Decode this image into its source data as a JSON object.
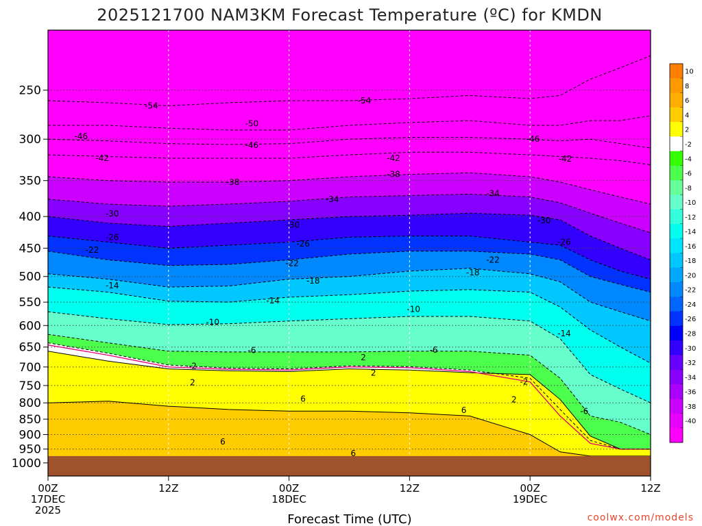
{
  "chart_data": {
    "type": "heatmap",
    "title": "2025121700 NAM3KM Forecast Temperature (ºC) for KMDN",
    "xlabel": "Forecast Time (UTC)",
    "ylabel": "",
    "x_unit": "hours from 2025-12-17 00Z",
    "xlim": [
      0,
      60
    ],
    "ylim_hpa": [
      1050,
      200
    ],
    "y_scale": "log-pressure",
    "x_ticks": [
      {
        "hour": 0,
        "lines": [
          "00Z",
          "17DEC",
          "2025"
        ]
      },
      {
        "hour": 12,
        "lines": [
          "12Z"
        ]
      },
      {
        "hour": 24,
        "lines": [
          "00Z",
          "18DEC"
        ]
      },
      {
        "hour": 36,
        "lines": [
          "12Z"
        ]
      },
      {
        "hour": 48,
        "lines": [
          "00Z",
          "19DEC"
        ]
      },
      {
        "hour": 60,
        "lines": [
          "12Z"
        ]
      }
    ],
    "y_ticks": [
      250,
      300,
      350,
      400,
      450,
      500,
      550,
      600,
      650,
      700,
      750,
      800,
      850,
      900,
      950,
      1000
    ],
    "grid": true,
    "ground_color": "#a0522d",
    "ground_top_hpa": 975,
    "colorbar": {
      "position": "right",
      "levels": [
        {
          "lo": 10,
          "hi": 12,
          "color": "#ff7f00",
          "label": "10"
        },
        {
          "lo": 8,
          "hi": 10,
          "color": "#ff9900",
          "label": "8"
        },
        {
          "lo": 6,
          "hi": 8,
          "color": "#ffae00",
          "label": "6"
        },
        {
          "lo": 4,
          "hi": 6,
          "color": "#ffcc00",
          "label": "4"
        },
        {
          "lo": 2,
          "hi": 4,
          "color": "#ffff00",
          "label": "2"
        },
        {
          "lo": -2,
          "hi": 2,
          "color": "#ffffff",
          "label": "-2"
        },
        {
          "lo": -4,
          "hi": -2,
          "color": "#33ff00",
          "label": "-4"
        },
        {
          "lo": -6,
          "hi": -4,
          "color": "#4cff4c",
          "label": "-6"
        },
        {
          "lo": -8,
          "hi": -6,
          "color": "#66ff99",
          "label": "-8"
        },
        {
          "lo": -10,
          "hi": -8,
          "color": "#66ffcc",
          "label": "-10"
        },
        {
          "lo": -12,
          "hi": -10,
          "color": "#33ffdd",
          "label": "-12"
        },
        {
          "lo": -14,
          "hi": -12,
          "color": "#00ffee",
          "label": "-14"
        },
        {
          "lo": -16,
          "hi": -14,
          "color": "#00e5ff",
          "label": "-16"
        },
        {
          "lo": -18,
          "hi": -16,
          "color": "#00c8ff",
          "label": "-18"
        },
        {
          "lo": -20,
          "hi": -18,
          "color": "#00a8ff",
          "label": "-20"
        },
        {
          "lo": -22,
          "hi": -20,
          "color": "#0088ff",
          "label": "-22"
        },
        {
          "lo": -24,
          "hi": -22,
          "color": "#0066ff",
          "label": "-24"
        },
        {
          "lo": -26,
          "hi": -24,
          "color": "#0033ff",
          "label": "-26"
        },
        {
          "lo": -28,
          "hi": -26,
          "color": "#0000ff",
          "label": "-28"
        },
        {
          "lo": -30,
          "hi": -28,
          "color": "#3300ff",
          "label": "-30"
        },
        {
          "lo": -32,
          "hi": -30,
          "color": "#6600ff",
          "label": "-32"
        },
        {
          "lo": -34,
          "hi": -32,
          "color": "#8800ff",
          "label": "-34"
        },
        {
          "lo": -36,
          "hi": -34,
          "color": "#aa00ff",
          "label": "-36"
        },
        {
          "lo": -38,
          "hi": -36,
          "color": "#cc00ff",
          "label": "-38"
        },
        {
          "lo": -40,
          "hi": -38,
          "color": "#e600ff",
          "label": "-40"
        },
        {
          "lo": -60,
          "hi": -40,
          "color": "#ff00ff",
          "label": ""
        }
      ]
    },
    "profile_times_h": [
      0,
      6,
      12,
      18,
      24,
      30,
      36,
      42,
      48,
      51,
      54,
      57,
      60
    ],
    "isotherm_levels_hpa": [
      {
        "t": 2,
        "p": [
          660,
          685,
          705,
          710,
          712,
          705,
          708,
          715,
          720,
          790,
          905,
          950,
          950
        ]
      },
      {
        "t": 0,
        "p": [
          645,
          670,
          700,
          706,
          708,
          700,
          702,
          712,
          740,
          840,
          930,
          950,
          950
        ]
      },
      {
        "t": -2,
        "p": [
          640,
          665,
          695,
          703,
          705,
          697,
          699,
          708,
          730,
          820,
          920,
          950,
          950
        ]
      },
      {
        "t": -6,
        "p": [
          620,
          640,
          660,
          662,
          662,
          662,
          660,
          660,
          670,
          730,
          840,
          860,
          900
        ]
      },
      {
        "t": -10,
        "p": [
          570,
          585,
          598,
          596,
          590,
          585,
          580,
          580,
          590,
          630,
          720,
          760,
          800
        ]
      },
      {
        "t": -14,
        "p": [
          520,
          530,
          548,
          550,
          540,
          535,
          528,
          525,
          530,
          560,
          610,
          650,
          690
        ]
      },
      {
        "t": -18,
        "p": [
          495,
          505,
          520,
          518,
          505,
          500,
          490,
          485,
          495,
          510,
          550,
          570,
          590
        ]
      },
      {
        "t": -22,
        "p": [
          455,
          470,
          480,
          478,
          470,
          460,
          455,
          455,
          460,
          470,
          500,
          515,
          530
        ]
      },
      {
        "t": -26,
        "p": [
          430,
          440,
          450,
          445,
          440,
          432,
          430,
          430,
          440,
          445,
          470,
          490,
          505
        ]
      },
      {
        "t": -30,
        "p": [
          400,
          410,
          415,
          410,
          405,
          400,
          398,
          395,
          398,
          405,
          430,
          450,
          470
        ]
      },
      {
        "t": -34,
        "p": [
          375,
          382,
          385,
          382,
          378,
          372,
          370,
          368,
          372,
          380,
          395,
          410,
          425
        ]
      },
      {
        "t": -38,
        "p": [
          345,
          350,
          352,
          352,
          350,
          345,
          342,
          340,
          345,
          352,
          362,
          372,
          382
        ]
      },
      {
        "t": -42,
        "p": [
          318,
          320,
          322,
          322,
          322,
          318,
          315,
          315,
          318,
          320,
          322,
          325,
          330
        ]
      },
      {
        "t": -46,
        "p": [
          300,
          302,
          305,
          306,
          305,
          300,
          298,
          298,
          300,
          302,
          300,
          305,
          310
        ]
      },
      {
        "t": -50,
        "p": [
          285,
          285,
          288,
          290,
          290,
          285,
          282,
          280,
          285,
          285,
          280,
          280,
          275
        ]
      },
      {
        "t": -54,
        "p": [
          260,
          262,
          265,
          262,
          260,
          260,
          258,
          255,
          258,
          255,
          240,
          230,
          220
        ]
      }
    ],
    "warm_layer_6C_hpa": [
      {
        "from": [
          800,
          795,
          810,
          820,
          825,
          825,
          830,
          840,
          900,
          960,
          975,
          975,
          975
        ],
        "to": [
          975,
          975,
          975,
          975,
          975,
          975,
          975,
          975,
          975,
          975,
          975,
          975,
          975
        ]
      }
    ],
    "contour_labels": [
      {
        "text": "-54",
        "hour": 10.3,
        "hpa": 265
      },
      {
        "text": "-54",
        "hour": 31.5,
        "hpa": 260
      },
      {
        "text": "-50",
        "hour": 20.3,
        "hpa": 283
      },
      {
        "text": "-46",
        "hour": 3.3,
        "hpa": 297
      },
      {
        "text": "-46",
        "hour": 20.3,
        "hpa": 307
      },
      {
        "text": "-46",
        "hour": 48.3,
        "hpa": 300
      },
      {
        "text": "-42",
        "hour": 5.4,
        "hpa": 322
      },
      {
        "text": "-42",
        "hour": 34.4,
        "hpa": 322
      },
      {
        "text": "-42",
        "hour": 51.5,
        "hpa": 323
      },
      {
        "text": "-38",
        "hour": 18.4,
        "hpa": 352
      },
      {
        "text": "-38",
        "hour": 34.4,
        "hpa": 342
      },
      {
        "text": "-34",
        "hour": 28.3,
        "hpa": 375
      },
      {
        "text": "-34",
        "hour": 44.3,
        "hpa": 367
      },
      {
        "text": "-30",
        "hour": 6.4,
        "hpa": 396
      },
      {
        "text": "-30",
        "hour": 24.4,
        "hpa": 413
      },
      {
        "text": "-30",
        "hour": 49.4,
        "hpa": 406
      },
      {
        "text": "-26",
        "hour": 6.4,
        "hpa": 432
      },
      {
        "text": "-26",
        "hour": 25.4,
        "hpa": 443
      },
      {
        "text": "-26",
        "hour": 51.4,
        "hpa": 440
      },
      {
        "text": "-22",
        "hour": 4.4,
        "hpa": 453
      },
      {
        "text": "-22",
        "hour": 24.3,
        "hpa": 476
      },
      {
        "text": "-22",
        "hour": 44.3,
        "hpa": 470
      },
      {
        "text": "-18",
        "hour": 26.4,
        "hpa": 508
      },
      {
        "text": "-18",
        "hour": 42.3,
        "hpa": 493
      },
      {
        "text": "-14",
        "hour": 6.4,
        "hpa": 517
      },
      {
        "text": "-14",
        "hour": 22.4,
        "hpa": 547
      },
      {
        "text": "-14",
        "hour": 51.4,
        "hpa": 618
      },
      {
        "text": "-10",
        "hour": 16.4,
        "hpa": 593
      },
      {
        "text": "-10",
        "hour": 36.4,
        "hpa": 565
      },
      {
        "text": "-6",
        "hour": 20.3,
        "hpa": 658
      },
      {
        "text": "-6",
        "hour": 38.4,
        "hpa": 657
      },
      {
        "text": "-6",
        "hour": 53.4,
        "hpa": 825
      },
      {
        "text": "-2",
        "hour": 14.4,
        "hpa": 698
      },
      {
        "text": "-2",
        "hour": 47.4,
        "hpa": 740
      },
      {
        "text": "2",
        "hour": 14.4,
        "hpa": 742
      },
      {
        "text": "2",
        "hour": 31.4,
        "hpa": 676
      },
      {
        "text": "2",
        "hour": 32.4,
        "hpa": 716
      },
      {
        "text": "2",
        "hour": 46.4,
        "hpa": 790
      },
      {
        "text": "6",
        "hour": 25.4,
        "hpa": 788
      },
      {
        "text": "6",
        "hour": 41.4,
        "hpa": 822
      },
      {
        "text": "6",
        "hour": 17.4,
        "hpa": 925
      },
      {
        "text": "6",
        "hour": 30.4,
        "hpa": 965
      }
    ]
  },
  "footer": {
    "credit": "coolwx.com/models"
  }
}
